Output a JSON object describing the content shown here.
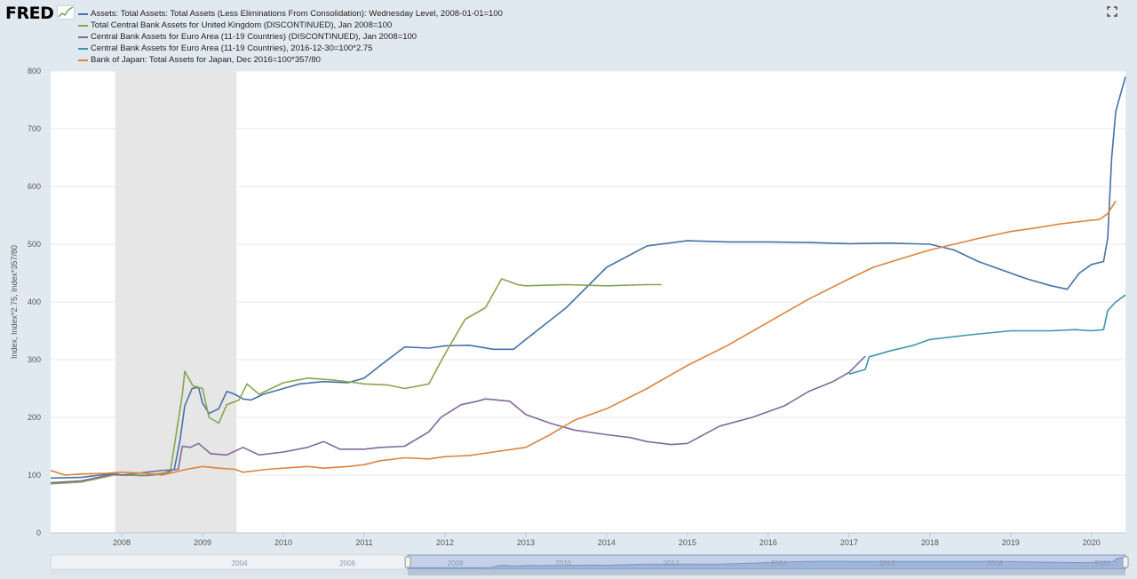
{
  "app": {
    "logo_text": "FRED"
  },
  "chart_data": {
    "type": "line",
    "ylabel": "Index, Index*2.75, Index*357/80",
    "ylim": [
      0,
      800
    ],
    "yticks": [
      0,
      100,
      200,
      300,
      400,
      500,
      600,
      700,
      800
    ],
    "xlim": [
      2007.12,
      2020.42
    ],
    "xticks": [
      2008,
      2009,
      2010,
      2011,
      2012,
      2013,
      2014,
      2015,
      2016,
      2017,
      2018,
      2019,
      2020
    ],
    "recession_shading": [
      2007.92,
      2009.42
    ],
    "grid": true,
    "legend_position": "top-left",
    "series": [
      {
        "name": "Assets: Total Assets: Total Assets (Less Eliminations From Consolidation): Wednesday Level, 2008-01-01=100",
        "color": "#4572a7",
        "points": [
          [
            2007.12,
            95
          ],
          [
            2007.5,
            96
          ],
          [
            2007.9,
            103
          ],
          [
            2008.0,
            100
          ],
          [
            2008.3,
            99
          ],
          [
            2008.5,
            102
          ],
          [
            2008.65,
            110
          ],
          [
            2008.72,
            160
          ],
          [
            2008.78,
            220
          ],
          [
            2008.87,
            250
          ],
          [
            2008.95,
            252
          ],
          [
            2009.0,
            225
          ],
          [
            2009.08,
            207
          ],
          [
            2009.2,
            215
          ],
          [
            2009.3,
            245
          ],
          [
            2009.4,
            240
          ],
          [
            2009.5,
            232
          ],
          [
            2009.6,
            230
          ],
          [
            2009.75,
            240
          ],
          [
            2010.0,
            250
          ],
          [
            2010.2,
            258
          ],
          [
            2010.5,
            262
          ],
          [
            2010.8,
            260
          ],
          [
            2011.0,
            268
          ],
          [
            2011.2,
            290
          ],
          [
            2011.5,
            322
          ],
          [
            2011.8,
            320
          ],
          [
            2012.0,
            324
          ],
          [
            2012.3,
            325
          ],
          [
            2012.6,
            318
          ],
          [
            2012.85,
            318
          ],
          [
            2013.0,
            335
          ],
          [
            2013.5,
            390
          ],
          [
            2014.0,
            460
          ],
          [
            2014.5,
            497
          ],
          [
            2015.0,
            506
          ],
          [
            2015.5,
            504
          ],
          [
            2016.0,
            504
          ],
          [
            2016.5,
            503
          ],
          [
            2017.0,
            501
          ],
          [
            2017.5,
            502
          ],
          [
            2018.0,
            500
          ],
          [
            2018.3,
            490
          ],
          [
            2018.6,
            470
          ],
          [
            2018.9,
            455
          ],
          [
            2019.2,
            440
          ],
          [
            2019.5,
            428
          ],
          [
            2019.7,
            422
          ],
          [
            2019.85,
            450
          ],
          [
            2020.0,
            465
          ],
          [
            2020.15,
            470
          ],
          [
            2020.2,
            510
          ],
          [
            2020.25,
            650
          ],
          [
            2020.3,
            730
          ],
          [
            2020.36,
            760
          ],
          [
            2020.42,
            790
          ]
        ]
      },
      {
        "name": "Total Central Bank Assets for United Kingdom (DISCONTINUED), Jan 2008=100",
        "color": "#89a54e",
        "points": [
          [
            2007.12,
            85
          ],
          [
            2007.5,
            88
          ],
          [
            2007.9,
            100
          ],
          [
            2008.3,
            100
          ],
          [
            2008.6,
            105
          ],
          [
            2008.65,
            150
          ],
          [
            2008.75,
            240
          ],
          [
            2008.78,
            280
          ],
          [
            2008.88,
            255
          ],
          [
            2009.0,
            250
          ],
          [
            2009.08,
            200
          ],
          [
            2009.2,
            190
          ],
          [
            2009.3,
            222
          ],
          [
            2009.45,
            230
          ],
          [
            2009.55,
            258
          ],
          [
            2009.7,
            240
          ],
          [
            2010.0,
            260
          ],
          [
            2010.3,
            268
          ],
          [
            2010.6,
            265
          ],
          [
            2010.9,
            260
          ],
          [
            2011.0,
            258
          ],
          [
            2011.3,
            256
          ],
          [
            2011.5,
            250
          ],
          [
            2011.8,
            258
          ],
          [
            2012.0,
            310
          ],
          [
            2012.25,
            370
          ],
          [
            2012.5,
            390
          ],
          [
            2012.7,
            440
          ],
          [
            2012.9,
            430
          ],
          [
            2013.0,
            428
          ],
          [
            2013.5,
            430
          ],
          [
            2014.0,
            428
          ],
          [
            2014.5,
            430
          ],
          [
            2014.68,
            430
          ]
        ]
      },
      {
        "name": "Central Bank Assets for Euro Area (11-19 Countries) (DISCONTINUED), Jan 2008=100",
        "color": "#80699b",
        "points": [
          [
            2007.12,
            87
          ],
          [
            2007.5,
            90
          ],
          [
            2007.9,
            102
          ],
          [
            2008.0,
            100
          ],
          [
            2008.3,
            105
          ],
          [
            2008.5,
            108
          ],
          [
            2008.7,
            110
          ],
          [
            2008.75,
            150
          ],
          [
            2008.85,
            148
          ],
          [
            2008.95,
            155
          ],
          [
            2009.1,
            137
          ],
          [
            2009.3,
            135
          ],
          [
            2009.5,
            148
          ],
          [
            2009.7,
            135
          ],
          [
            2010.0,
            140
          ],
          [
            2010.3,
            148
          ],
          [
            2010.5,
            158
          ],
          [
            2010.7,
            145
          ],
          [
            2011.0,
            145
          ],
          [
            2011.2,
            148
          ],
          [
            2011.5,
            150
          ],
          [
            2011.8,
            175
          ],
          [
            2011.95,
            200
          ],
          [
            2012.2,
            222
          ],
          [
            2012.4,
            228
          ],
          [
            2012.5,
            232
          ],
          [
            2012.8,
            228
          ],
          [
            2013.0,
            205
          ],
          [
            2013.3,
            190
          ],
          [
            2013.6,
            178
          ],
          [
            2014.0,
            170
          ],
          [
            2014.3,
            165
          ],
          [
            2014.5,
            158
          ],
          [
            2014.8,
            153
          ],
          [
            2015.0,
            155
          ],
          [
            2015.4,
            185
          ],
          [
            2015.8,
            200
          ],
          [
            2016.2,
            220
          ],
          [
            2016.5,
            245
          ],
          [
            2016.8,
            262
          ],
          [
            2017.0,
            278
          ],
          [
            2017.2,
            306
          ]
        ]
      },
      {
        "name": "Central Bank Assets for Euro Area (11-19 Countries), 2016-12-30=100*2.75",
        "color": "#3d96ae",
        "points": [
          [
            2017.0,
            275
          ],
          [
            2017.2,
            283
          ],
          [
            2017.25,
            305
          ],
          [
            2017.5,
            315
          ],
          [
            2017.8,
            325
          ],
          [
            2018.0,
            335
          ],
          [
            2018.5,
            343
          ],
          [
            2019.0,
            350
          ],
          [
            2019.5,
            350
          ],
          [
            2019.8,
            352
          ],
          [
            2020.0,
            350
          ],
          [
            2020.15,
            352
          ],
          [
            2020.2,
            385
          ],
          [
            2020.3,
            400
          ],
          [
            2020.42,
            412
          ]
        ]
      },
      {
        "name": "Bank of Japan: Total Assets for Japan, Dec 2016=100*357/80",
        "color": "#db843d",
        "points": [
          [
            2007.12,
            108
          ],
          [
            2007.3,
            100
          ],
          [
            2007.5,
            102
          ],
          [
            2007.8,
            103
          ],
          [
            2008.0,
            105
          ],
          [
            2008.3,
            103
          ],
          [
            2008.5,
            100
          ],
          [
            2008.8,
            110
          ],
          [
            2009.0,
            115
          ],
          [
            2009.2,
            112
          ],
          [
            2009.4,
            110
          ],
          [
            2009.5,
            105
          ],
          [
            2009.8,
            110
          ],
          [
            2010.0,
            112
          ],
          [
            2010.3,
            115
          ],
          [
            2010.5,
            112
          ],
          [
            2010.8,
            115
          ],
          [
            2011.0,
            118
          ],
          [
            2011.2,
            125
          ],
          [
            2011.5,
            130
          ],
          [
            2011.8,
            128
          ],
          [
            2012.0,
            132
          ],
          [
            2012.3,
            134
          ],
          [
            2012.6,
            140
          ],
          [
            2012.9,
            146
          ],
          [
            2013.0,
            148
          ],
          [
            2013.3,
            170
          ],
          [
            2013.6,
            195
          ],
          [
            2014.0,
            215
          ],
          [
            2014.5,
            250
          ],
          [
            2015.0,
            290
          ],
          [
            2015.5,
            325
          ],
          [
            2016.0,
            365
          ],
          [
            2016.5,
            405
          ],
          [
            2017.0,
            440
          ],
          [
            2017.3,
            460
          ],
          [
            2017.6,
            473
          ],
          [
            2018.0,
            490
          ],
          [
            2018.3,
            500
          ],
          [
            2018.6,
            510
          ],
          [
            2019.0,
            522
          ],
          [
            2019.3,
            528
          ],
          [
            2019.6,
            535
          ],
          [
            2019.9,
            540
          ],
          [
            2020.1,
            543
          ],
          [
            2020.2,
            553
          ],
          [
            2020.3,
            575
          ]
        ]
      }
    ],
    "navigator": {
      "xlim": [
        2000.5,
        2020.42
      ],
      "xticks": [
        2004,
        2006,
        2008,
        2010,
        2012,
        2014,
        2016,
        2018,
        2020
      ],
      "selected_range": [
        2007.12,
        2020.42
      ]
    }
  }
}
